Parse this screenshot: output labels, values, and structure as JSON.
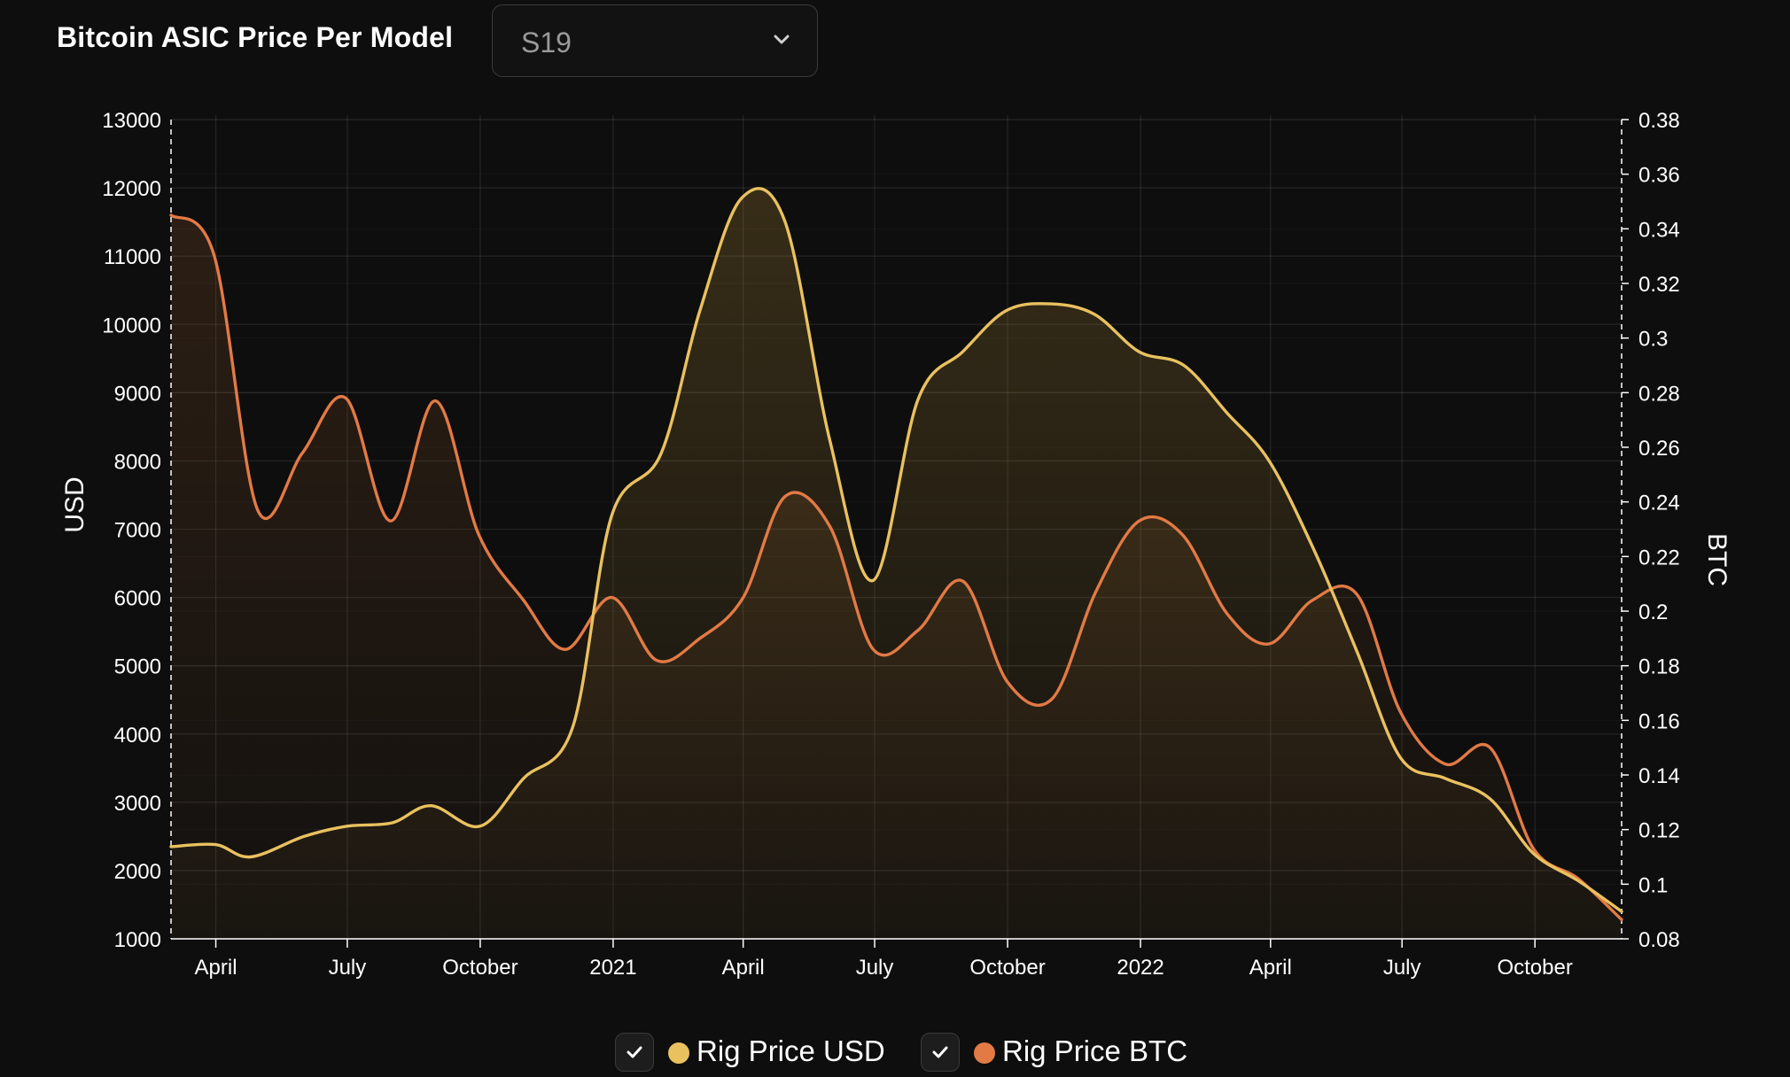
{
  "header": {
    "title": "Bitcoin ASIC Price Per Model",
    "model_select": {
      "value": "S19"
    }
  },
  "legend": {
    "items": [
      {
        "label": "Rig Price USD",
        "color": "#e9c15f",
        "checked": true
      },
      {
        "label": "Rig Price BTC",
        "color": "#e27a45",
        "checked": true
      }
    ]
  },
  "chart_data": {
    "type": "area",
    "ylabel": "USD",
    "y2label": "BTC",
    "ylim": [
      1000,
      13000
    ],
    "y2lim": [
      0.08,
      0.38
    ],
    "yticks": [
      "1000",
      "2000",
      "3000",
      "4000",
      "5000",
      "6000",
      "7000",
      "8000",
      "9000",
      "10000",
      "11000",
      "12000",
      "13000"
    ],
    "y2ticks": [
      "0.08",
      "0.1",
      "0.12",
      "0.14",
      "0.16",
      "0.18",
      "0.2",
      "0.22",
      "0.24",
      "0.26",
      "0.28",
      "0.3",
      "0.32",
      "0.34",
      "0.36",
      "0.38"
    ],
    "xlim": [
      "2020-03-01",
      "2022-11-30"
    ],
    "xticks": [
      {
        "date": "2020-04-01",
        "label": "April"
      },
      {
        "date": "2020-07-01",
        "label": "July"
      },
      {
        "date": "2020-10-01",
        "label": "October"
      },
      {
        "date": "2021-01-01",
        "label": "2021"
      },
      {
        "date": "2021-04-01",
        "label": "April"
      },
      {
        "date": "2021-07-01",
        "label": "July"
      },
      {
        "date": "2021-10-01",
        "label": "October"
      },
      {
        "date": "2022-01-01",
        "label": "2022"
      },
      {
        "date": "2022-04-01",
        "label": "April"
      },
      {
        "date": "2022-07-01",
        "label": "July"
      },
      {
        "date": "2022-10-01",
        "label": "October"
      }
    ],
    "grid": true,
    "legend_position": "bottom-center",
    "series": [
      {
        "name": "Rig Price USD",
        "axis": "left",
        "color": "#e9c15f",
        "points": [
          [
            "2020-03-01",
            2350
          ],
          [
            "2020-04-01",
            2380
          ],
          [
            "2020-04-25",
            2200
          ],
          [
            "2020-06-01",
            2500
          ],
          [
            "2020-07-01",
            2650
          ],
          [
            "2020-08-01",
            2700
          ],
          [
            "2020-08-28",
            2950
          ],
          [
            "2020-10-01",
            2650
          ],
          [
            "2020-10-31",
            3350
          ],
          [
            "2020-12-04",
            4100
          ],
          [
            "2020-12-31",
            7200
          ],
          [
            "2021-02-03",
            8100
          ],
          [
            "2021-03-02",
            10200
          ],
          [
            "2021-03-31",
            11850
          ],
          [
            "2021-04-30",
            11500
          ],
          [
            "2021-05-31",
            8300
          ],
          [
            "2021-06-30",
            6250
          ],
          [
            "2021-07-31",
            8900
          ],
          [
            "2021-08-31",
            9600
          ],
          [
            "2021-09-30",
            10200
          ],
          [
            "2021-10-31",
            10300
          ],
          [
            "2021-11-30",
            10150
          ],
          [
            "2021-12-31",
            9600
          ],
          [
            "2022-01-31",
            9400
          ],
          [
            "2022-03-02",
            8700
          ],
          [
            "2022-03-31",
            8000
          ],
          [
            "2022-05-01",
            6700
          ],
          [
            "2022-05-31",
            5200
          ],
          [
            "2022-06-30",
            3650
          ],
          [
            "2022-07-31",
            3350
          ],
          [
            "2022-08-31",
            3050
          ],
          [
            "2022-09-30",
            2250
          ],
          [
            "2022-10-31",
            1850
          ],
          [
            "2022-11-30",
            1400
          ]
        ]
      },
      {
        "name": "Rig Price BTC",
        "axis": "right",
        "color": "#e27a45",
        "points": [
          [
            "2020-03-01",
            0.345
          ],
          [
            "2020-03-31",
            0.33
          ],
          [
            "2020-04-30",
            0.237
          ],
          [
            "2020-05-31",
            0.258
          ],
          [
            "2020-06-30",
            0.278
          ],
          [
            "2020-07-31",
            0.233
          ],
          [
            "2020-08-31",
            0.277
          ],
          [
            "2020-09-30",
            0.228
          ],
          [
            "2020-10-31",
            0.204
          ],
          [
            "2020-11-29",
            0.186
          ],
          [
            "2020-12-31",
            0.205
          ],
          [
            "2021-01-31",
            0.182
          ],
          [
            "2021-03-02",
            0.19
          ],
          [
            "2021-04-01",
            0.205
          ],
          [
            "2021-04-30",
            0.242
          ],
          [
            "2021-05-31",
            0.231
          ],
          [
            "2021-06-30",
            0.186
          ],
          [
            "2021-07-31",
            0.193
          ],
          [
            "2021-08-31",
            0.211
          ],
          [
            "2021-10-01",
            0.174
          ],
          [
            "2021-11-01",
            0.168
          ],
          [
            "2021-12-01",
            0.207
          ],
          [
            "2021-12-31",
            0.233
          ],
          [
            "2022-01-30",
            0.228
          ],
          [
            "2022-03-02",
            0.199
          ],
          [
            "2022-03-31",
            0.188
          ],
          [
            "2022-04-30",
            0.204
          ],
          [
            "2022-05-31",
            0.206
          ],
          [
            "2022-06-30",
            0.163
          ],
          [
            "2022-07-31",
            0.144
          ],
          [
            "2022-08-31",
            0.15
          ],
          [
            "2022-09-30",
            0.113
          ],
          [
            "2022-10-31",
            0.102
          ],
          [
            "2022-11-30",
            0.087
          ]
        ]
      }
    ]
  }
}
